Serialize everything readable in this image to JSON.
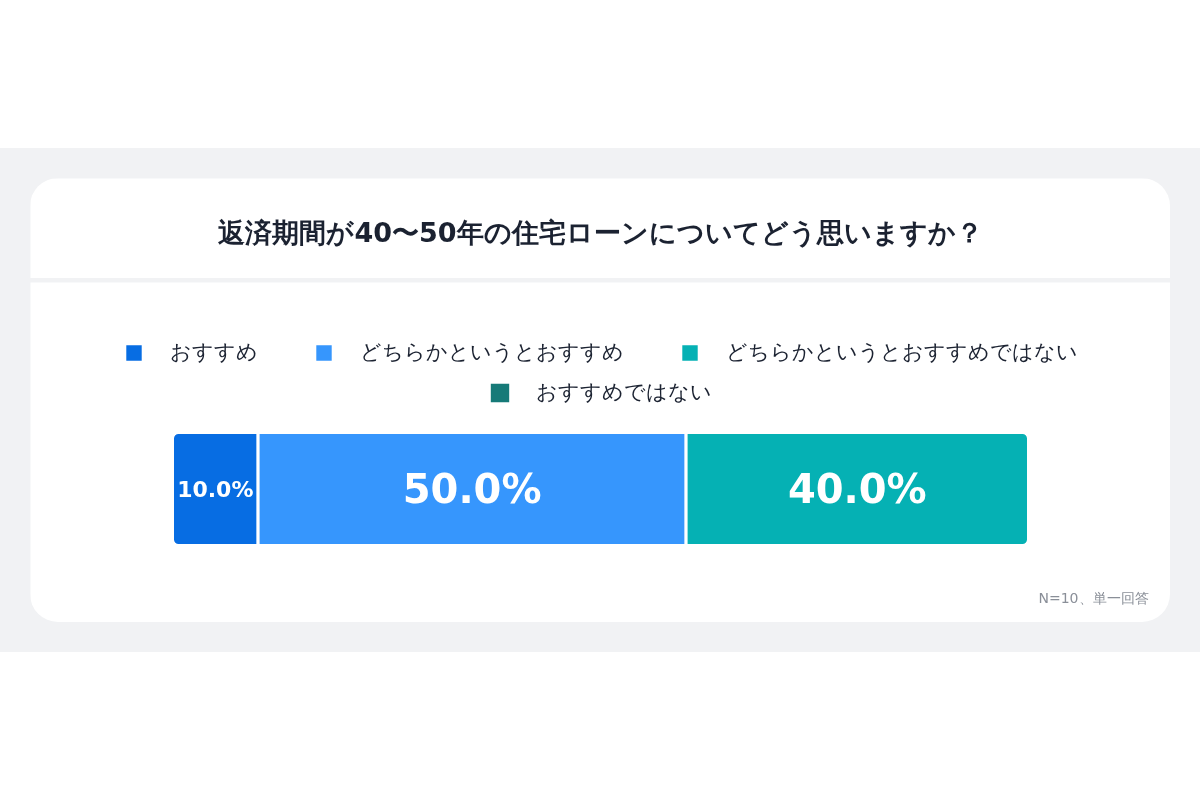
{
  "chart_data": {
    "type": "bar",
    "orientation": "horizontal",
    "stacked": true,
    "title": "返済期間が40〜50年の住宅ローンについてどう思いますか？",
    "categories": [
      null
    ],
    "series": [
      {
        "name": "おすすめ",
        "color": "#076de3",
        "values": [
          10.0
        ],
        "value_labels": [
          "10.0%"
        ]
      },
      {
        "name": "どちらかというとおすすめ",
        "color": "#3696fd",
        "values": [
          50.0
        ],
        "value_labels": [
          "50.0%"
        ]
      },
      {
        "name": "どちらかというとおすすめではない",
        "color": "#05b1b4",
        "values": [
          40.0
        ],
        "value_labels": [
          "40.0%"
        ]
      },
      {
        "name": "おすすめではない",
        "color": "#167a78",
        "values": [
          0
        ],
        "value_labels": [
          null
        ]
      }
    ],
    "legend": "top",
    "annotations": [
      "N=10、単一回答"
    ]
  }
}
